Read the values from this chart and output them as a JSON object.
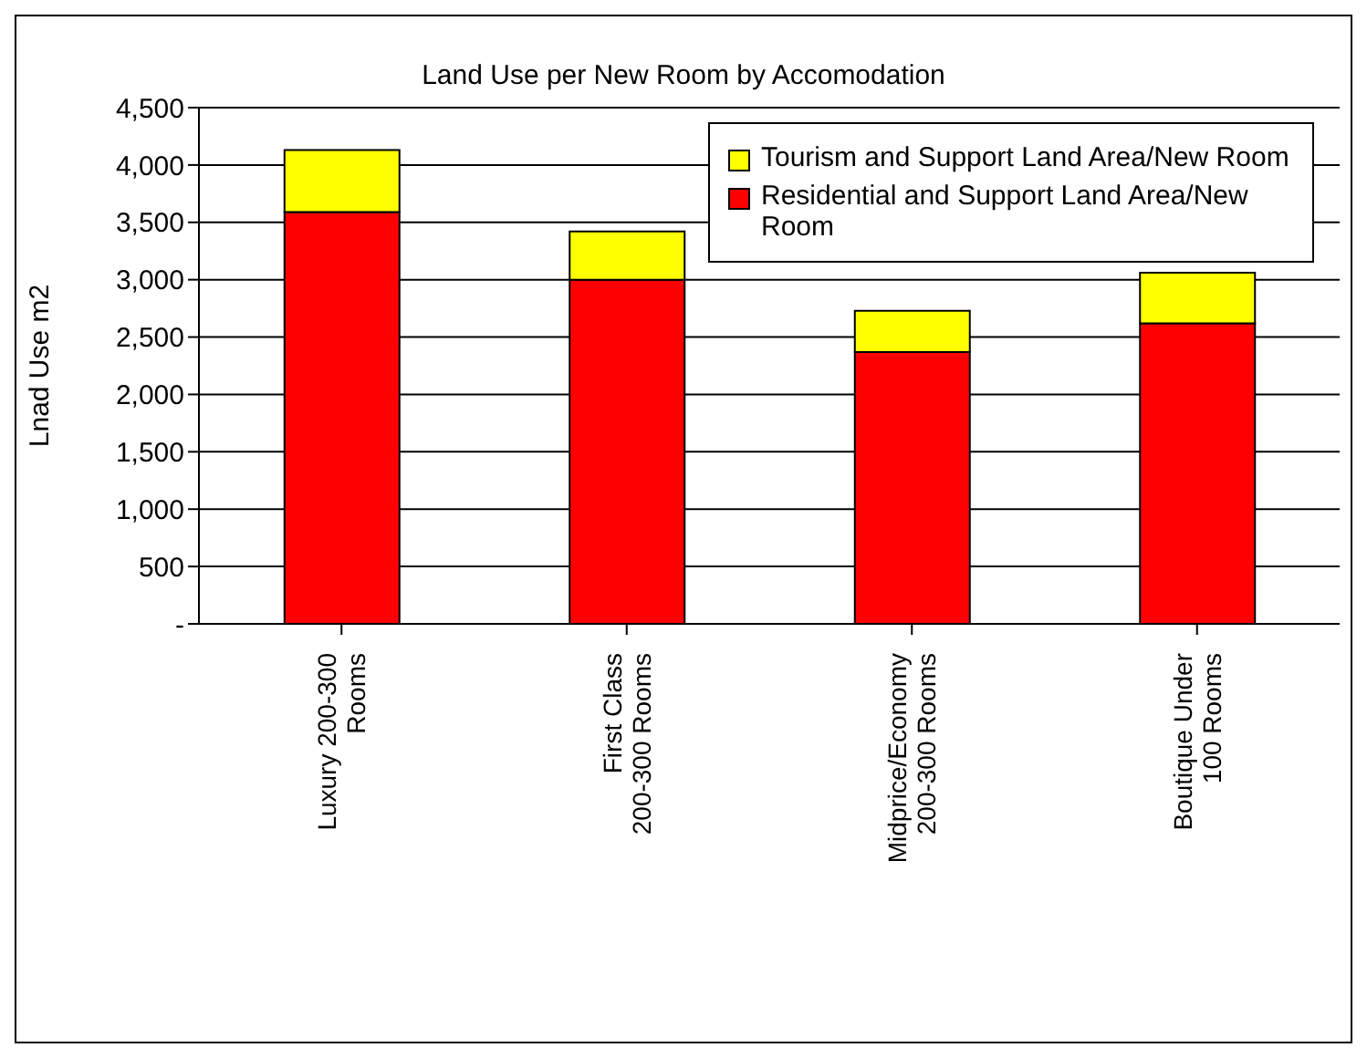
{
  "chart_data": {
    "type": "bar",
    "title": "Land Use per New Room by Accomodation",
    "ylabel": "Lnad Use m2",
    "categories": [
      "Luxury 200-300 Rooms",
      "First Class 200-300 Rooms",
      "Midprice/Economy 200-300 Rooms",
      "Boutique Under 100 Rooms"
    ],
    "stacked": true,
    "series": [
      {
        "name": "Residential and Support Land Area/New Room",
        "color": "#ff0000",
        "values": [
          3590,
          3000,
          2370,
          2620
        ]
      },
      {
        "name": "Tourism and Support Land Area/New Room",
        "color": "#ffff00",
        "values": [
          540,
          420,
          360,
          440
        ]
      }
    ],
    "ylim": [
      0,
      4500
    ],
    "yticks": [
      {
        "value": 0,
        "label": "-"
      },
      {
        "value": 500,
        "label": "500"
      },
      {
        "value": 1000,
        "label": "1,000"
      },
      {
        "value": 1500,
        "label": "1,500"
      },
      {
        "value": 2000,
        "label": "2,000"
      },
      {
        "value": 2500,
        "label": "2,500"
      },
      {
        "value": 3000,
        "label": "3,000"
      },
      {
        "value": 3500,
        "label": "3,500"
      },
      {
        "value": 4000,
        "label": "4,000"
      },
      {
        "value": 4500,
        "label": "4,500"
      }
    ],
    "grid": "y",
    "legend": "top right"
  }
}
